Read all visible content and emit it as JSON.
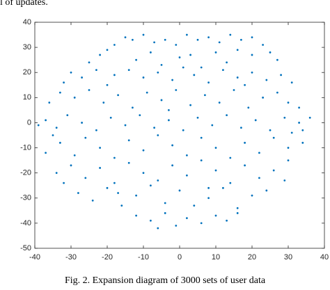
{
  "page_text": "l of updates.",
  "caption": "Fig. 2. Expansion diagram of 3000 sets of user data",
  "chart_data": {
    "type": "scatter",
    "color": "#0072bd",
    "xlim": [
      -40,
      40
    ],
    "ylim": [
      -50,
      40
    ],
    "xticks": [
      -40,
      -30,
      -20,
      -10,
      0,
      10,
      20,
      30,
      40
    ],
    "yticks": [
      -50,
      -40,
      -30,
      -20,
      -10,
      0,
      10,
      20,
      30,
      40
    ],
    "x": [
      -15,
      -13,
      -10,
      -7,
      -4,
      -1,
      2,
      5,
      8,
      11,
      14,
      17,
      20,
      23,
      -18,
      -20,
      16,
      25,
      -22,
      -8,
      3,
      10,
      20,
      27,
      -25,
      -12,
      0,
      13,
      -5,
      6,
      -30,
      -27,
      -23,
      -18,
      -14,
      -10,
      -6,
      -2,
      4,
      8,
      12,
      16,
      20,
      24,
      28,
      31,
      -32,
      -20,
      1,
      18,
      -33,
      -29,
      -25,
      -21,
      -17,
      -13,
      -9,
      -5,
      -1,
      3,
      7,
      11,
      15,
      19,
      23,
      27,
      30,
      33,
      -36,
      -3,
      -39,
      -37,
      -34,
      -31,
      -27,
      -23,
      -19,
      -15,
      -11,
      -7,
      -3,
      1,
      5,
      9,
      13,
      17,
      21,
      25,
      29,
      33,
      31,
      34,
      36,
      -37,
      -33,
      -29,
      -26,
      -22,
      -18,
      -14,
      -10,
      -6,
      -2,
      2,
      6,
      10,
      14,
      18,
      22,
      26,
      30,
      34,
      -35,
      -34,
      -30,
      -26,
      -22,
      -18,
      -14,
      -10,
      -6,
      -2,
      2,
      6,
      10,
      14,
      18,
      22,
      26,
      30,
      29,
      -32,
      -28,
      -24,
      -20,
      -16,
      -12,
      -8,
      -4,
      0,
      4,
      8,
      12,
      16,
      20,
      24,
      -17,
      8,
      -12,
      -8,
      -4,
      -1,
      2,
      6,
      10,
      13,
      16,
      -6
    ],
    "y": [
      34,
      33,
      35,
      32,
      33,
      31,
      35,
      33,
      34,
      32,
      35,
      33,
      34,
      31,
      31,
      29,
      29,
      28,
      27,
      28,
      27,
      28,
      27,
      25,
      24,
      25,
      26,
      24,
      23,
      22,
      20,
      18,
      21,
      19,
      21,
      18,
      20,
      17,
      19,
      16,
      21,
      18,
      20,
      17,
      19,
      16,
      16,
      15,
      22,
      15,
      12,
      10,
      13,
      8,
      11,
      6,
      12,
      9,
      13,
      7,
      11,
      8,
      13,
      6,
      10,
      12,
      8,
      6,
      8,
      5,
      -1,
      1,
      -2,
      3,
      0,
      -3,
      2,
      -1,
      3,
      -2,
      1,
      -3,
      2,
      -1,
      3,
      -2,
      1,
      -3,
      2,
      0,
      -4,
      -3,
      2,
      -12,
      -8,
      -13,
      -6,
      -10,
      -14,
      -7,
      -11,
      -5,
      -9,
      -13,
      -6,
      -10,
      -14,
      -8,
      -12,
      -6,
      -10,
      -8,
      -5,
      -20,
      -17,
      -22,
      -18,
      -24,
      -16,
      -20,
      -23,
      -17,
      -21,
      -15,
      -19,
      -24,
      -17,
      -22,
      -19,
      -15,
      -23,
      -24,
      -28,
      -31,
      -26,
      -33,
      -29,
      -25,
      -32,
      -27,
      -33,
      -30,
      -26,
      -34,
      -29,
      -27,
      -28,
      -26,
      -37,
      -39,
      -36,
      -41,
      -38,
      -40,
      -37,
      -39,
      -36,
      -42
    ]
  }
}
